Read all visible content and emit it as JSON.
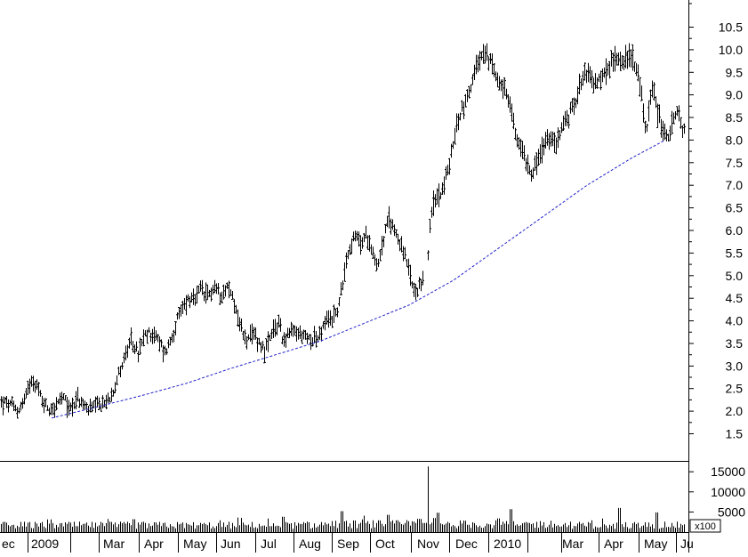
{
  "chart_data": {
    "type": "ohlc",
    "price_axis": {
      "ticks": [
        1.5,
        2.0,
        2.5,
        3.0,
        3.5,
        4.0,
        4.5,
        5.0,
        5.5,
        6.0,
        6.5,
        7.0,
        7.5,
        8.0,
        8.5,
        9.0,
        9.5,
        10.0,
        10.5
      ],
      "tick_labels": [
        "1.5",
        "2.0",
        "2.5",
        "3.0",
        "3.5",
        "4.0",
        "4.5",
        "5.0",
        "5.5",
        "6.0",
        "6.5",
        "7.0",
        "7.5",
        "8.0",
        "8.5",
        "9.0",
        "9.5",
        "10.0",
        "10.5"
      ],
      "range": [
        0.9,
        11.1
      ]
    },
    "volume_axis": {
      "ticks": [
        5000,
        10000,
        15000
      ],
      "tick_labels": [
        "5000",
        "10000",
        "15000"
      ],
      "multiplier_label": "x100",
      "range": [
        0,
        17700
      ]
    },
    "month_labels": [
      "ec",
      "2009",
      "Mar",
      "Apr",
      "May",
      "Jun",
      "Jul",
      "Aug",
      "Sep",
      "Oct",
      "Nov",
      "Dec",
      "2010",
      "Mar",
      "Apr",
      "May",
      "Ju"
    ],
    "price_anchors": [
      [
        0,
        2.2
      ],
      [
        10,
        2.15
      ],
      [
        20,
        2.0
      ],
      [
        28,
        2.3
      ],
      [
        35,
        2.75
      ],
      [
        40,
        2.6
      ],
      [
        48,
        2.2
      ],
      [
        55,
        2.05
      ],
      [
        62,
        2.1
      ],
      [
        70,
        2.3
      ],
      [
        78,
        2.05
      ],
      [
        86,
        2.3
      ],
      [
        94,
        2.1
      ],
      [
        102,
        2.05
      ],
      [
        110,
        2.1
      ],
      [
        120,
        2.2
      ],
      [
        128,
        2.55
      ],
      [
        135,
        2.95
      ],
      [
        142,
        3.3
      ],
      [
        148,
        3.55
      ],
      [
        155,
        3.25
      ],
      [
        162,
        3.65
      ],
      [
        170,
        3.75
      ],
      [
        178,
        3.55
      ],
      [
        185,
        3.3
      ],
      [
        192,
        3.6
      ],
      [
        198,
        3.95
      ],
      [
        205,
        4.3
      ],
      [
        212,
        4.5
      ],
      [
        218,
        4.4
      ],
      [
        225,
        4.7
      ],
      [
        232,
        4.5
      ],
      [
        240,
        4.75
      ],
      [
        248,
        4.6
      ],
      [
        255,
        4.75
      ],
      [
        262,
        4.5
      ],
      [
        268,
        4.0
      ],
      [
        272,
        3.75
      ],
      [
        278,
        3.55
      ],
      [
        286,
        3.7
      ],
      [
        292,
        3.5
      ],
      [
        298,
        3.35
      ],
      [
        306,
        3.7
      ],
      [
        314,
        4.0
      ],
      [
        318,
        3.55
      ],
      [
        324,
        3.7
      ],
      [
        330,
        3.75
      ],
      [
        338,
        3.7
      ],
      [
        346,
        3.6
      ],
      [
        352,
        3.65
      ],
      [
        358,
        3.6
      ],
      [
        364,
        3.9
      ],
      [
        370,
        4.05
      ],
      [
        376,
        4.1
      ],
      [
        382,
        4.45
      ],
      [
        388,
        5.3
      ],
      [
        394,
        5.7
      ],
      [
        400,
        5.85
      ],
      [
        406,
        5.7
      ],
      [
        412,
        5.9
      ],
      [
        418,
        5.6
      ],
      [
        424,
        5.2
      ],
      [
        430,
        5.75
      ],
      [
        436,
        6.2
      ],
      [
        440,
        6.15
      ],
      [
        446,
        5.9
      ],
      [
        452,
        5.6
      ],
      [
        458,
        5.2
      ],
      [
        464,
        4.7
      ],
      [
        468,
        4.5
      ],
      [
        474,
        4.9
      ],
      [
        480,
        5.25
      ],
      [
        484,
        6.35
      ],
      [
        490,
        6.7
      ],
      [
        496,
        6.9
      ],
      [
        502,
        7.2
      ],
      [
        508,
        7.8
      ],
      [
        514,
        8.4
      ],
      [
        520,
        8.75
      ],
      [
        526,
        9.0
      ],
      [
        532,
        9.4
      ],
      [
        538,
        9.75
      ],
      [
        544,
        9.9
      ],
      [
        550,
        9.75
      ],
      [
        556,
        9.5
      ],
      [
        562,
        9.3
      ],
      [
        568,
        9.0
      ],
      [
        574,
        8.7
      ],
      [
        580,
        8.0
      ],
      [
        586,
        7.85
      ],
      [
        592,
        7.5
      ],
      [
        598,
        7.3
      ],
      [
        604,
        7.55
      ],
      [
        610,
        7.8
      ],
      [
        616,
        8.05
      ],
      [
        622,
        7.9
      ],
      [
        628,
        8.1
      ],
      [
        634,
        8.4
      ],
      [
        640,
        8.55
      ],
      [
        646,
        8.85
      ],
      [
        652,
        9.3
      ],
      [
        658,
        9.55
      ],
      [
        664,
        9.35
      ],
      [
        670,
        9.2
      ],
      [
        676,
        9.4
      ],
      [
        682,
        9.55
      ],
      [
        688,
        9.7
      ],
      [
        694,
        9.9
      ],
      [
        700,
        9.75
      ],
      [
        706,
        9.85
      ],
      [
        712,
        9.8
      ],
      [
        718,
        9.3
      ],
      [
        722,
        8.8
      ],
      [
        726,
        8.1
      ],
      [
        732,
        9.25
      ],
      [
        738,
        8.7
      ],
      [
        744,
        8.3
      ],
      [
        750,
        8.0
      ],
      [
        756,
        8.4
      ],
      [
        762,
        8.6
      ],
      [
        768,
        8.2
      ]
    ],
    "gaps": [
      [
        476,
        481
      ]
    ],
    "trendline": {
      "style": "dashed",
      "color": "#2222cc",
      "points": [
        [
          58,
          1.85
        ],
        [
          110,
          2.1
        ],
        [
          160,
          2.35
        ],
        [
          210,
          2.62
        ],
        [
          260,
          2.95
        ],
        [
          310,
          3.25
        ],
        [
          360,
          3.55
        ],
        [
          410,
          3.95
        ],
        [
          460,
          4.35
        ],
        [
          510,
          4.9
        ],
        [
          560,
          5.6
        ],
        [
          610,
          6.3
        ],
        [
          660,
          7.0
        ],
        [
          710,
          7.6
        ],
        [
          748,
          8.0
        ]
      ]
    },
    "volume_spikes": [
      [
        481,
        16300
      ],
      [
        488,
        3500
      ],
      [
        492,
        4800
      ],
      [
        318,
        3800
      ],
      [
        384,
        5200
      ],
      [
        436,
        4300
      ],
      [
        574,
        5700
      ],
      [
        696,
        6000
      ],
      [
        738,
        4900
      ],
      [
        560,
        3400
      ],
      [
        150,
        3200
      ],
      [
        470,
        3300
      ]
    ],
    "colors": {
      "bars": "#000000",
      "trendline": "#2222cc",
      "axis": "#000000",
      "background": "#ffffff"
    }
  }
}
